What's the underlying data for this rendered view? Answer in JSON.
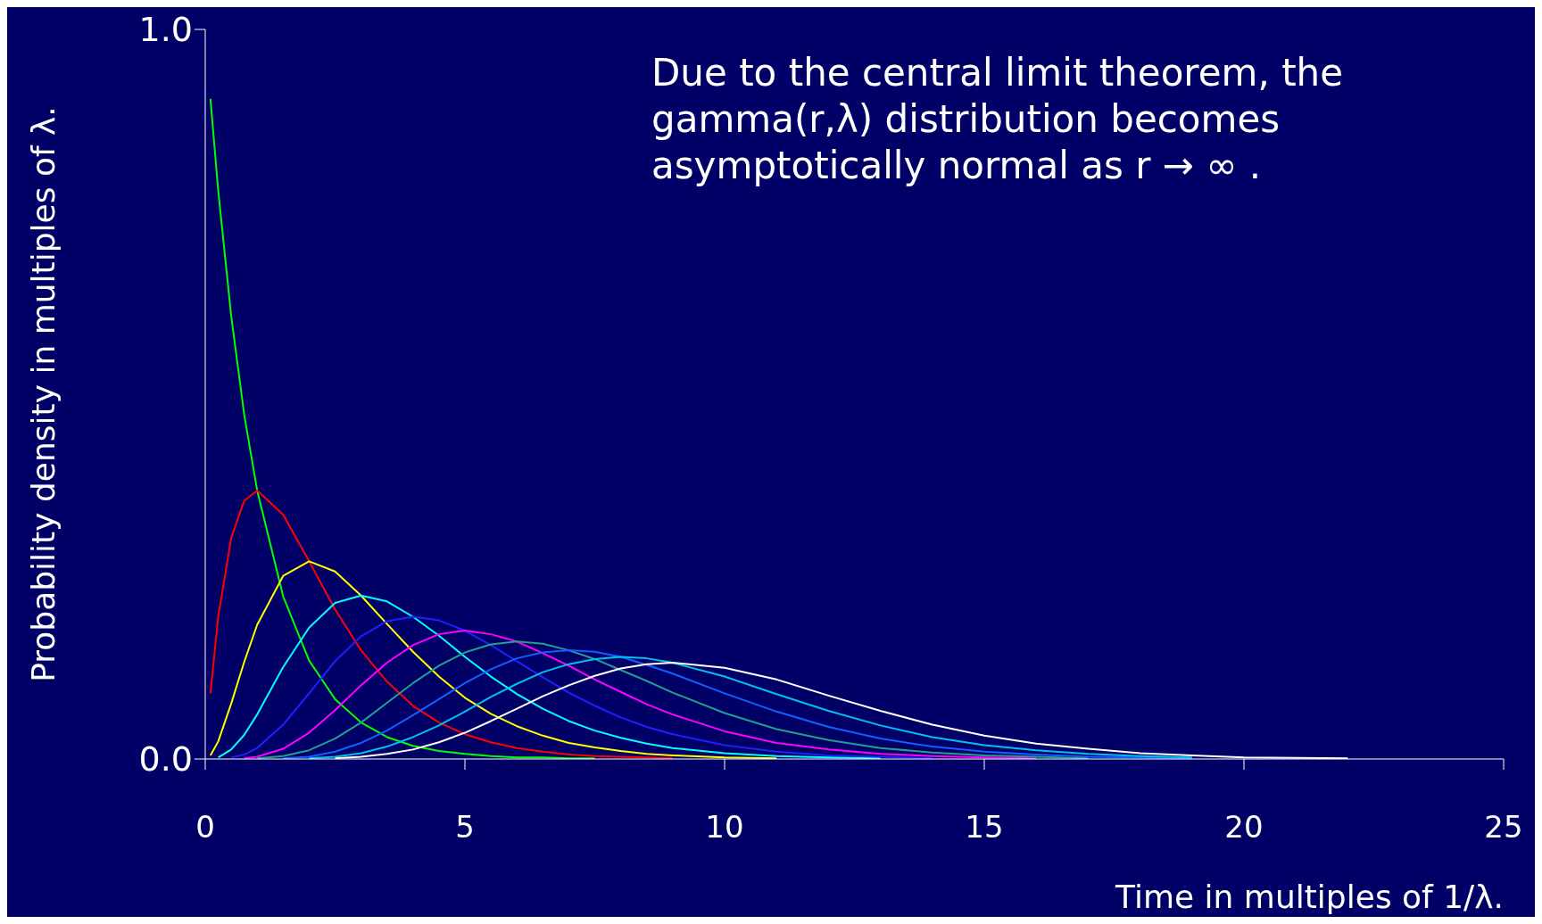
{
  "chart_data": {
    "type": "line",
    "ylabel": "Probability density in multiples of λ.",
    "xlabel": "Time in multiples of 1/λ.",
    "annotations": [
      "Due to the central limit theorem, the gamma(r,λ) distribution becomes asymptotically normal as r → ∞ ."
    ],
    "x": [
      0.1,
      0.25,
      0.5,
      0.75,
      1,
      1.5,
      2,
      2.5,
      3,
      3.5,
      4,
      4.5,
      5,
      5.5,
      6,
      6.5,
      7,
      7.5,
      8,
      8.5,
      9,
      10,
      11,
      12,
      13,
      14,
      15,
      16,
      17,
      18,
      19,
      20,
      22
    ],
    "xlim": [
      0,
      25
    ],
    "xticks": [
      0,
      5,
      10,
      15,
      20,
      25
    ],
    "ylim": [
      0,
      1
    ],
    "yticks": [
      {
        "value": 0,
        "label": "0.0"
      },
      {
        "value": 1,
        "label": "1.0"
      }
    ],
    "series": [
      {
        "color": "#00ff00",
        "values": [
          0.905,
          0.779,
          0.607,
          0.472,
          0.368,
          0.223,
          0.135,
          0.082,
          0.05,
          0.03,
          0.018,
          0.011,
          0.007,
          0.004,
          0.002,
          0.002,
          0.001,
          0.001,
          null,
          null,
          null,
          null,
          null,
          null,
          null,
          null,
          null,
          null,
          null,
          null,
          null,
          null,
          null
        ]
      },
      {
        "color": "#ff0000",
        "values": [
          0.09,
          0.195,
          0.303,
          0.354,
          0.368,
          0.335,
          0.271,
          0.205,
          0.149,
          0.106,
          0.073,
          0.05,
          0.034,
          0.023,
          0.015,
          0.01,
          0.006,
          0.004,
          0.003,
          0.002,
          0.001,
          null,
          null,
          null,
          null,
          null,
          null,
          null,
          null,
          null,
          null,
          null,
          null
        ]
      },
      {
        "color": "#ffff00",
        "values": [
          0.005,
          0.024,
          0.076,
          0.133,
          0.184,
          0.251,
          0.271,
          0.257,
          0.224,
          0.185,
          0.147,
          0.113,
          0.084,
          0.062,
          0.045,
          0.032,
          0.022,
          0.016,
          0.011,
          0.007,
          0.005,
          0.002,
          0.001,
          null,
          null,
          null,
          null,
          null,
          null,
          null,
          null,
          null,
          null
        ]
      },
      {
        "color": "#00ffff",
        "values": [
          null,
          0.002,
          0.013,
          0.033,
          0.061,
          0.126,
          0.18,
          0.214,
          0.224,
          0.216,
          0.195,
          0.169,
          0.14,
          0.113,
          0.089,
          0.069,
          0.052,
          0.039,
          0.029,
          0.021,
          0.015,
          0.008,
          0.004,
          0.002,
          0.001,
          null,
          null,
          null,
          null,
          null,
          null,
          null,
          null
        ]
      },
      {
        "color": "#2020ff",
        "values": [
          null,
          null,
          0.002,
          0.006,
          0.015,
          0.047,
          0.09,
          0.134,
          0.168,
          0.189,
          0.195,
          0.19,
          0.176,
          0.156,
          0.134,
          0.112,
          0.091,
          0.073,
          0.057,
          0.044,
          0.034,
          0.019,
          0.01,
          0.005,
          0.003,
          0.001,
          null,
          null,
          null,
          null,
          null,
          null,
          null
        ]
      },
      {
        "color": "#ff00ff",
        "values": [
          null,
          null,
          null,
          0.001,
          0.003,
          0.014,
          0.036,
          0.067,
          0.101,
          0.132,
          0.156,
          0.171,
          0.176,
          0.171,
          0.161,
          0.145,
          0.128,
          0.109,
          0.092,
          0.075,
          0.061,
          0.038,
          0.022,
          0.013,
          0.007,
          0.004,
          0.002,
          0.001,
          null,
          null,
          null,
          null,
          null
        ]
      },
      {
        "color": "#20a090",
        "values": [
          null,
          null,
          null,
          null,
          0.001,
          0.004,
          0.012,
          0.028,
          0.05,
          0.077,
          0.104,
          0.128,
          0.146,
          0.157,
          0.161,
          0.158,
          0.149,
          0.137,
          0.122,
          0.107,
          0.091,
          0.063,
          0.041,
          0.026,
          0.015,
          0.009,
          0.005,
          0.003,
          0.001,
          null,
          null,
          null,
          null
        ]
      },
      {
        "color": "#1060ff",
        "values": [
          null,
          null,
          null,
          null,
          null,
          0.001,
          0.003,
          0.01,
          0.022,
          0.039,
          0.06,
          0.082,
          0.104,
          0.123,
          0.138,
          0.146,
          0.149,
          0.147,
          0.14,
          0.129,
          0.117,
          0.09,
          0.065,
          0.044,
          0.028,
          0.017,
          0.01,
          0.006,
          0.003,
          0.002,
          0.001,
          null,
          null
        ]
      },
      {
        "color": "#00c0f0",
        "values": [
          null,
          null,
          null,
          null,
          null,
          null,
          0.001,
          0.003,
          0.008,
          0.017,
          0.03,
          0.046,
          0.065,
          0.085,
          0.103,
          0.119,
          0.13,
          0.137,
          0.14,
          0.138,
          0.132,
          0.113,
          0.089,
          0.066,
          0.046,
          0.03,
          0.019,
          0.012,
          0.007,
          0.004,
          0.002,
          null,
          null
        ]
      },
      {
        "color": "#ffffff",
        "values": [
          null,
          null,
          null,
          null,
          null,
          null,
          null,
          0.001,
          0.003,
          0.007,
          0.013,
          0.023,
          0.036,
          0.052,
          0.069,
          0.086,
          0.101,
          0.114,
          0.124,
          0.13,
          0.132,
          0.125,
          0.109,
          0.087,
          0.066,
          0.047,
          0.032,
          0.021,
          0.014,
          0.008,
          0.005,
          0.002,
          0.001
        ]
      }
    ]
  }
}
